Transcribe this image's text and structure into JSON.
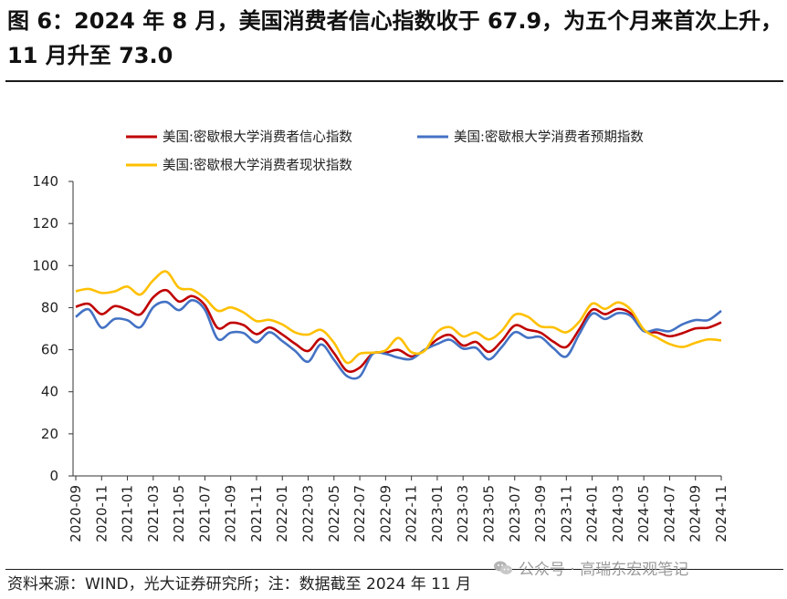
{
  "title": "图 6：2024 年 8 月，美国消费者信心指数收于 67.9，为五个月来首次上升，11 月升至 73.0",
  "source": "资料来源：WIND，光大证券研究所；注：数据截至 2024 年 11 月",
  "watermark": "公众号 · 高瑞东宏观笔记",
  "chart_data": {
    "type": "line",
    "title": "",
    "xlabel": "",
    "ylabel": "",
    "ylim": [
      0,
      140
    ],
    "yticks": [
      0,
      20,
      40,
      60,
      80,
      100,
      120,
      140
    ],
    "grid": false,
    "legend_position": "top",
    "x": [
      "2020-09",
      "2020-10",
      "2020-11",
      "2020-12",
      "2021-01",
      "2021-02",
      "2021-03",
      "2021-04",
      "2021-05",
      "2021-06",
      "2021-07",
      "2021-08",
      "2021-09",
      "2021-10",
      "2021-11",
      "2021-12",
      "2022-01",
      "2022-02",
      "2022-03",
      "2022-04",
      "2022-05",
      "2022-06",
      "2022-07",
      "2022-08",
      "2022-09",
      "2022-10",
      "2022-11",
      "2022-12",
      "2023-01",
      "2023-02",
      "2023-03",
      "2023-04",
      "2023-05",
      "2023-06",
      "2023-07",
      "2023-08",
      "2023-09",
      "2023-10",
      "2023-11",
      "2023-12",
      "2024-01",
      "2024-02",
      "2024-03",
      "2024-04",
      "2024-05",
      "2024-06",
      "2024-07",
      "2024-08",
      "2024-09",
      "2024-10",
      "2024-11"
    ],
    "xtick_labels": [
      "2020-09",
      "2020-11",
      "2021-01",
      "2021-03",
      "2021-05",
      "2021-07",
      "2021-09",
      "2021-11",
      "2022-01",
      "2022-03",
      "2022-05",
      "2022-07",
      "2022-09",
      "2022-11",
      "2023-01",
      "2023-03",
      "2023-05",
      "2023-07",
      "2023-09",
      "2023-11",
      "2024-01",
      "2024-03",
      "2024-05",
      "2024-07",
      "2024-09",
      "2024-11"
    ],
    "series": [
      {
        "name": "美国:密歇根大学消费者信心指数",
        "color": "#c00000",
        "values": [
          80.4,
          81.8,
          76.9,
          80.7,
          79.0,
          76.8,
          84.9,
          88.3,
          82.9,
          85.5,
          81.2,
          70.3,
          72.8,
          71.7,
          67.4,
          70.6,
          67.2,
          62.8,
          59.4,
          65.2,
          58.4,
          50.0,
          51.5,
          58.2,
          58.6,
          59.9,
          56.8,
          59.7,
          64.9,
          67.0,
          62.0,
          63.7,
          59.0,
          64.2,
          71.5,
          69.5,
          68.1,
          63.8,
          61.3,
          69.7,
          79.0,
          76.9,
          79.4,
          77.2,
          69.1,
          68.2,
          66.4,
          67.9,
          70.1,
          70.5,
          73.0
        ]
      },
      {
        "name": "美国:密歇根大学消费者预期指数",
        "color": "#4472c4",
        "values": [
          75.6,
          79.2,
          70.5,
          74.6,
          74.0,
          70.7,
          80.2,
          82.7,
          78.8,
          83.5,
          79.0,
          65.1,
          68.1,
          67.9,
          63.5,
          68.3,
          64.1,
          59.4,
          54.3,
          62.5,
          55.2,
          47.5,
          47.3,
          58.0,
          58.0,
          56.2,
          55.6,
          59.9,
          62.7,
          64.7,
          60.5,
          60.9,
          55.4,
          61.3,
          68.3,
          65.7,
          66.0,
          60.7,
          56.8,
          67.4,
          77.1,
          74.6,
          77.4,
          76.0,
          68.8,
          69.6,
          68.8,
          72.1,
          74.1,
          74.1,
          78.5
        ]
      },
      {
        "name": "美国:密歇根大学消费者现状指数",
        "color": "#ffc000",
        "values": [
          87.8,
          88.9,
          87.0,
          87.7,
          90.0,
          86.2,
          93.0,
          97.2,
          89.4,
          88.6,
          84.5,
          78.5,
          80.1,
          77.7,
          73.6,
          74.2,
          72.0,
          68.2,
          67.2,
          69.4,
          63.3,
          53.8,
          58.1,
          58.6,
          59.7,
          65.6,
          58.8,
          59.4,
          68.4,
          70.7,
          66.3,
          68.2,
          64.9,
          69.0,
          76.6,
          75.7,
          71.1,
          70.6,
          68.3,
          73.3,
          81.9,
          79.4,
          82.5,
          79.0,
          69.6,
          65.9,
          62.7,
          61.3,
          63.3,
          64.9,
          64.4
        ]
      }
    ]
  }
}
